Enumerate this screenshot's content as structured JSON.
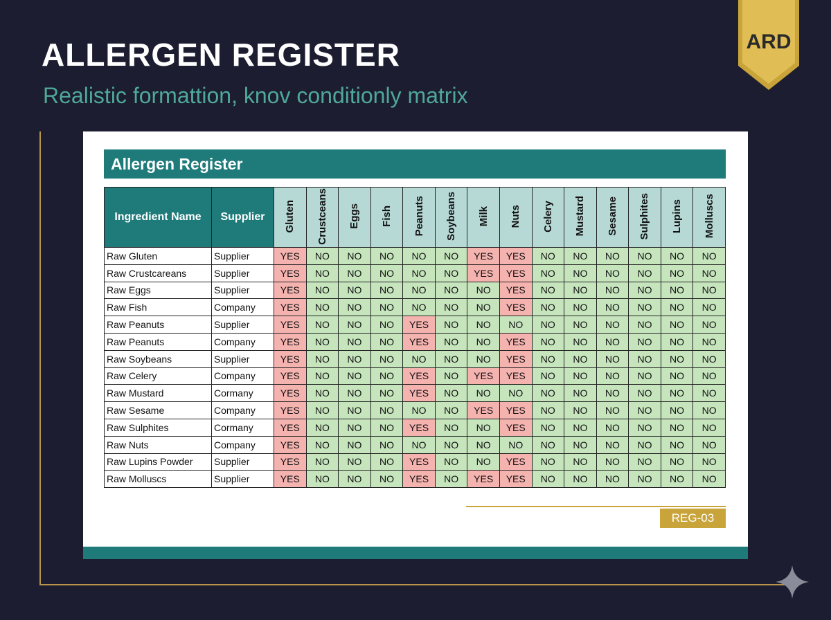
{
  "header": {
    "title": "ALLERGEN REGISTER",
    "subtitle": "Realistic formattion, knov conditionly matrix",
    "badge": "ARD"
  },
  "table": {
    "title": "Allergen Register",
    "columns": [
      "Ingredient Name",
      "Supplier",
      "Gluten",
      "Crustceans",
      "Eggs",
      "Fish",
      "Peanuts",
      "Soybeans",
      "Milk",
      "Nuts",
      "Celery",
      "Mustard",
      "Sesame",
      "Sulphites",
      "Lupins",
      "Molluscs"
    ],
    "rows": [
      [
        "Raw Gluten",
        "Supplier",
        "YES",
        "NO",
        "NO",
        "NO",
        "NO",
        "NO",
        "YES",
        "YES",
        "NO",
        "NO",
        "NO",
        "NO",
        "NO",
        "NO"
      ],
      [
        "Raw Crustcareans",
        "Supplier",
        "YES",
        "NO",
        "NO",
        "NO",
        "NO",
        "NO",
        "YES",
        "YES",
        "NO",
        "NO",
        "NO",
        "NO",
        "NO",
        "NO"
      ],
      [
        "Raw Eggs",
        "Supplier",
        "YES",
        "NO",
        "NO",
        "NO",
        "NO",
        "NO",
        "NO",
        "YES",
        "NO",
        "NO",
        "NO",
        "NO",
        "NO",
        "NO"
      ],
      [
        "Raw Fish",
        "Company",
        "YES",
        "NO",
        "NO",
        "NO",
        "NO",
        "NO",
        "NO",
        "YES",
        "NO",
        "NO",
        "NO",
        "NO",
        "NO",
        "NO"
      ],
      [
        "Raw Peanuts",
        "Supplier",
        "YES",
        "NO",
        "NO",
        "NO",
        "YES",
        "NO",
        "NO",
        "NO",
        "NO",
        "NO",
        "NO",
        "NO",
        "NO",
        "NO"
      ],
      [
        "Raw Peanuts",
        "Company",
        "YES",
        "NO",
        "NO",
        "NO",
        "YES",
        "NO",
        "NO",
        "YES",
        "NO",
        "NO",
        "NO",
        "NO",
        "NO",
        "NO"
      ],
      [
        "Raw Soybeans",
        "Supplier",
        "YES",
        "NO",
        "NO",
        "NO",
        "NO",
        "NO",
        "NO",
        "YES",
        "NO",
        "NO",
        "NO",
        "NO",
        "NO",
        "NO"
      ],
      [
        "Raw Celery",
        "Company",
        "YES",
        "NO",
        "NO",
        "NO",
        "YES",
        "NO",
        "YES",
        "YES",
        "NO",
        "NO",
        "NO",
        "NO",
        "NO",
        "NO"
      ],
      [
        "Raw Mustard",
        "Cormany",
        "YES",
        "NO",
        "NO",
        "NO",
        "YES",
        "NO",
        "NO",
        "NO",
        "NO",
        "NO",
        "NO",
        "NO",
        "NO",
        "NO"
      ],
      [
        "Raw Sesame",
        "Company",
        "YES",
        "NO",
        "NO",
        "NO",
        "NO",
        "NO",
        "YES",
        "YES",
        "NO",
        "NO",
        "NO",
        "NO",
        "NO",
        "NO"
      ],
      [
        "Raw Sulphites",
        "Cormany",
        "YES",
        "NO",
        "NO",
        "NO",
        "YES",
        "NO",
        "NO",
        "YES",
        "NO",
        "NO",
        "NO",
        "NO",
        "NO",
        "NO"
      ],
      [
        "Raw Nuts",
        "Company",
        "YES",
        "NO",
        "NO",
        "NO",
        "NO",
        "NO",
        "NO",
        "NO",
        "NO",
        "NO",
        "NO",
        "NO",
        "NO",
        "NO"
      ],
      [
        "Raw Lupins Powder",
        "Supplier",
        "YES",
        "NO",
        "NO",
        "NO",
        "YES",
        "NO",
        "NO",
        "YES",
        "NO",
        "NO",
        "NO",
        "NO",
        "NO",
        "NO"
      ],
      [
        "Raw Molluscs",
        "Supplier",
        "YES",
        "NO",
        "NO",
        "NO",
        "YES",
        "NO",
        "YES",
        "YES",
        "NO",
        "NO",
        "NO",
        "NO",
        "NO",
        "NO"
      ]
    ]
  },
  "footer": {
    "code": "REG-03"
  }
}
